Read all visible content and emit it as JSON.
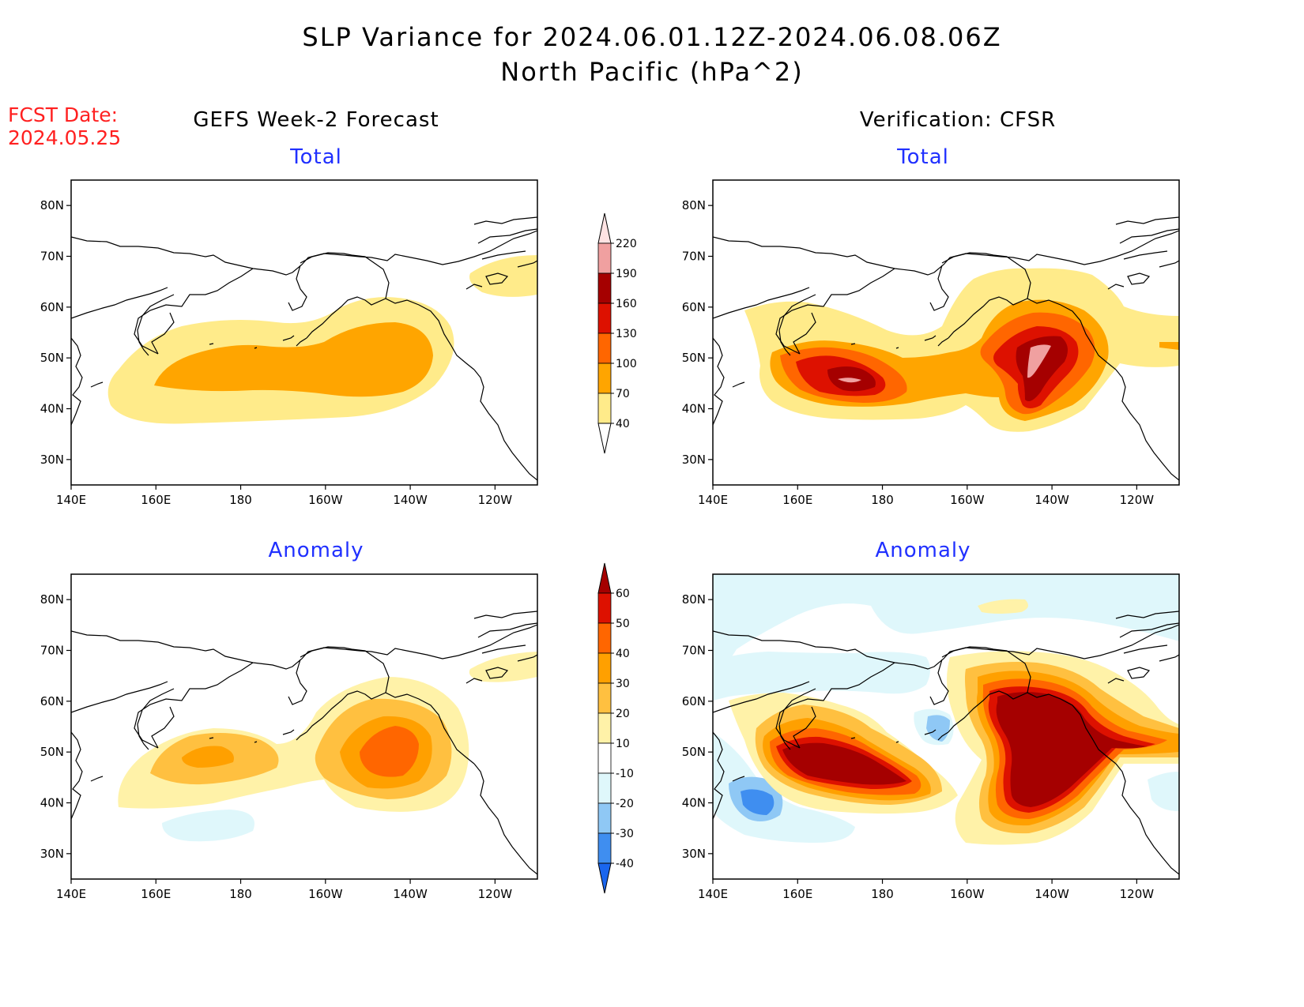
{
  "title_line1": "SLP Variance for 2024.06.01.12Z-2024.06.08.06Z",
  "title_line2": "North Pacific (hPa^2)",
  "fcst_label": "FCST Date:",
  "fcst_date": "2024.05.25",
  "left_column_title": "GEFS Week-2 Forecast",
  "right_column_title": "Verification: CFSR",
  "panels": [
    {
      "title": "Total"
    },
    {
      "title": "Total"
    },
    {
      "title": "Anomaly"
    },
    {
      "title": "Anomaly"
    }
  ],
  "axes": {
    "lon_ticks": [
      "140E",
      "160E",
      "180",
      "160W",
      "140W",
      "120W"
    ],
    "lat_ticks": [
      "30N",
      "40N",
      "50N",
      "60N",
      "70N",
      "80N"
    ]
  },
  "colorbar_total": {
    "labels": [
      "40",
      "70",
      "100",
      "130",
      "160",
      "190",
      "220"
    ],
    "colors": [
      "#ffffff",
      "#ffeb8a",
      "#ffa500",
      "#ff6600",
      "#dd1100",
      "#a50000",
      "#f0a0a0",
      "#ffe3e3"
    ]
  },
  "colorbar_anomaly": {
    "labels": [
      "-40",
      "-30",
      "-20",
      "-10",
      "10",
      "20",
      "30",
      "40",
      "50",
      "60"
    ],
    "colors": [
      "#1a66ee",
      "#3f8ef0",
      "#8fc8f5",
      "#dff7fb",
      "#ffffff",
      "#fff2a8",
      "#ffc040",
      "#ffa000",
      "#ff6600",
      "#dd1100",
      "#a50000"
    ]
  }
}
